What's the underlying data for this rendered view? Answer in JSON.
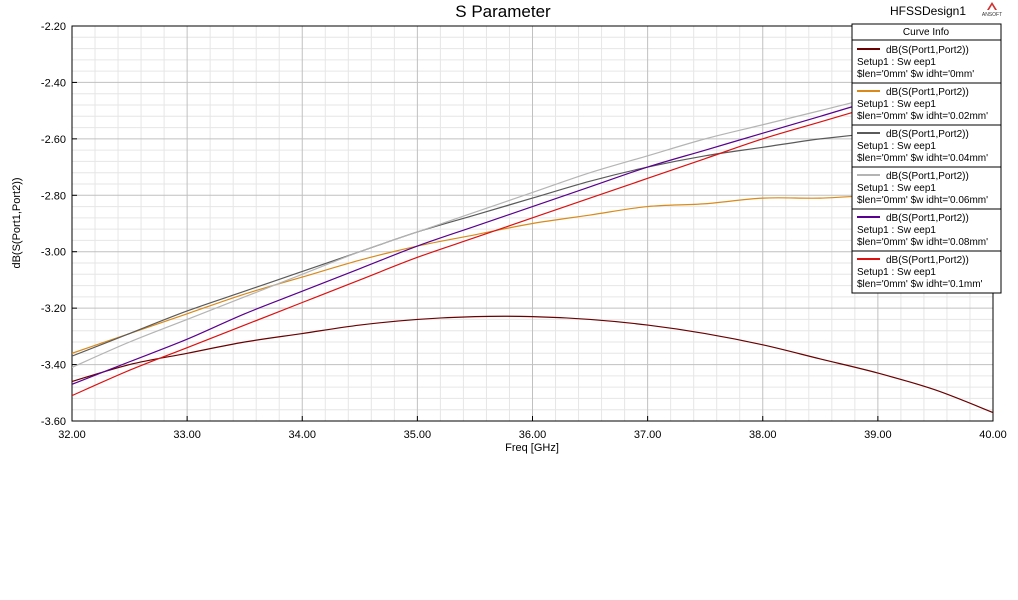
{
  "header": {
    "title": "S Parameter",
    "design_name": "HFSSDesign1",
    "logo_text": "ANSOFT"
  },
  "legend": {
    "title": "Curve Info"
  },
  "chart_data": {
    "type": "line",
    "title": "S Parameter",
    "xlabel": "Freq [GHz]",
    "ylabel": "dB(S(Port1,Port2))",
    "xlim": [
      32,
      40
    ],
    "ylim": [
      -3.6,
      -2.2
    ],
    "x_ticks": [
      32,
      33,
      34,
      35,
      36,
      37,
      38,
      39,
      40
    ],
    "y_ticks": [
      -2.2,
      -2.4,
      -2.6,
      -2.8,
      -3.0,
      -3.2,
      -3.4,
      -3.6
    ],
    "x_tick_labels": [
      "32.00",
      "33.00",
      "34.00",
      "35.00",
      "36.00",
      "37.00",
      "38.00",
      "39.00",
      "40.00"
    ],
    "y_tick_labels": [
      "-2.20",
      "-2.40",
      "-2.60",
      "-2.80",
      "-3.00",
      "-3.20",
      "-3.40",
      "-3.60"
    ],
    "grid": true,
    "legend_position": "top-right",
    "x": [
      32,
      32.5,
      33,
      33.5,
      34,
      34.5,
      35,
      35.5,
      36,
      36.5,
      37,
      37.5,
      38,
      38.5,
      39,
      39.5,
      40
    ],
    "series": [
      {
        "name": "dB(S(Port1,Port2))",
        "line2": "Setup1 : Sw eep1",
        "line3": "$len='0mm' $w idht='0mm'",
        "color": "#6b0000",
        "values": [
          -3.46,
          -3.4,
          -3.36,
          -3.32,
          -3.29,
          -3.26,
          -3.24,
          -3.23,
          -3.23,
          -3.24,
          -3.26,
          -3.29,
          -3.33,
          -3.38,
          -3.43,
          -3.49,
          -3.57
        ]
      },
      {
        "name": "dB(S(Port1,Port2))",
        "line2": "Setup1 : Sw eep1",
        "line3": "$len='0mm' $w idht='0.02mm'",
        "color": "#d98a1a",
        "values": [
          -3.36,
          -3.29,
          -3.22,
          -3.15,
          -3.09,
          -3.03,
          -2.98,
          -2.94,
          -2.9,
          -2.87,
          -2.84,
          -2.83,
          -2.81,
          -2.81,
          -2.8,
          -2.8,
          -2.8
        ]
      },
      {
        "name": "dB(S(Port1,Port2))",
        "line2": "Setup1 : Sw eep1",
        "line3": "$len='0mm' $w idht='0.04mm'",
        "color": "#5a5a5a",
        "values": [
          -3.37,
          -3.29,
          -3.21,
          -3.14,
          -3.07,
          -3.0,
          -2.93,
          -2.87,
          -2.81,
          -2.75,
          -2.7,
          -2.66,
          -2.63,
          -2.6,
          -2.58,
          -2.57,
          -2.56
        ]
      },
      {
        "name": "dB(S(Port1,Port2))",
        "line2": "Setup1 : Sw eep1",
        "line3": "$len='0mm' $w idht='0.06mm'",
        "color": "#b4b4b4",
        "values": [
          -3.41,
          -3.32,
          -3.24,
          -3.16,
          -3.08,
          -3.0,
          -2.93,
          -2.86,
          -2.79,
          -2.72,
          -2.66,
          -2.6,
          -2.55,
          -2.5,
          -2.45,
          -2.41,
          -2.38
        ]
      },
      {
        "name": "dB(S(Port1,Port2))",
        "line2": "Setup1 : Sw eep1",
        "line3": "$len='0mm' $w idht='0.08mm'",
        "color": "#5a0090",
        "values": [
          -3.47,
          -3.39,
          -3.31,
          -3.22,
          -3.14,
          -3.06,
          -2.98,
          -2.91,
          -2.84,
          -2.77,
          -2.7,
          -2.64,
          -2.58,
          -2.52,
          -2.46,
          -2.41,
          -2.36
        ]
      },
      {
        "name": "dB(S(Port1,Port2))",
        "line2": "Setup1 : Sw eep1",
        "line3": "$len='0mm' $w idht='0.1mm'",
        "color": "#dd1010",
        "values": [
          -3.51,
          -3.42,
          -3.34,
          -3.26,
          -3.18,
          -3.1,
          -3.02,
          -2.95,
          -2.88,
          -2.81,
          -2.74,
          -2.67,
          -2.6,
          -2.54,
          -2.48,
          -2.42,
          -2.36
        ]
      }
    ]
  }
}
